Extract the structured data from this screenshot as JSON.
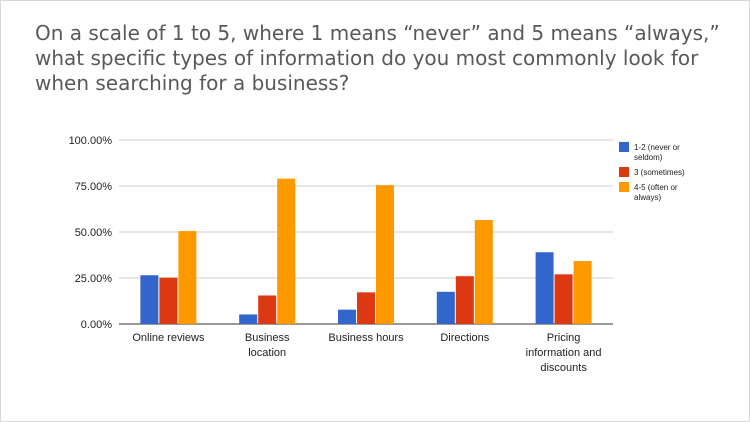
{
  "title_lines": [
    "On a scale of 1 to 5, where 1 means “never” and 5 means “always,”",
    "what specific types of information do you most commonly look for",
    "when searching for a business?"
  ],
  "chart_data": {
    "type": "bar",
    "title": "On a scale of 1 to 5, where 1 means “never” and 5 means “always,” what specific types of information do you most commonly look for when searching for a business?",
    "categories": [
      [
        "Online reviews"
      ],
      [
        "Business",
        "location"
      ],
      [
        "Business hours"
      ],
      [
        "Directions"
      ],
      [
        "Pricing",
        "information and",
        "discounts"
      ]
    ],
    "category_names": [
      "Online reviews",
      "Business location",
      "Business hours",
      "Directions",
      "Pricing information and discounts"
    ],
    "series": [
      {
        "name": "1-2 (never or seldom)",
        "legend_lines": [
          "1-2 (never or",
          "seldom)"
        ],
        "color": "#3366cc",
        "values": [
          26.5,
          5.2,
          7.8,
          17.5,
          39.0
        ]
      },
      {
        "name": "3 (sometimes)",
        "legend_lines": [
          "3 (sometimes)"
        ],
        "color": "#dc3912",
        "values": [
          25.2,
          15.5,
          17.2,
          26.0,
          27.0
        ]
      },
      {
        "name": "4-5 (often or always)",
        "legend_lines": [
          "4-5 (often or",
          "always)"
        ],
        "color": "#ff9900",
        "values": [
          50.5,
          79.0,
          75.5,
          56.5,
          34.2
        ]
      }
    ],
    "yticks": [
      "0.00%",
      "25.00%",
      "50.00%",
      "75.00%",
      "100.00%"
    ],
    "ytick_values": [
      0,
      25,
      50,
      75,
      100
    ],
    "ylim": [
      0,
      100
    ],
    "xlabel": "",
    "ylabel": "",
    "grid": true,
    "legend_position": "right"
  }
}
